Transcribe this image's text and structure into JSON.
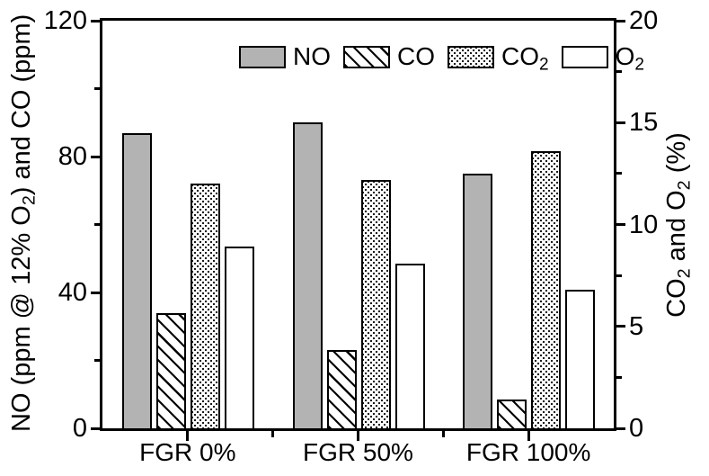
{
  "figure": {
    "background": "#ffffff",
    "line_color": "#000000",
    "bar_gray": "#b3b3b3"
  },
  "chart_data": {
    "type": "bar",
    "categories": [
      "FGR 0%",
      "FGR 50%",
      "FGR 100%"
    ],
    "series": [
      {
        "name": "NO",
        "axis": "left",
        "fill": "solid-gray",
        "label_parts": [
          {
            "t": "NO"
          }
        ],
        "values": [
          87,
          90,
          75
        ]
      },
      {
        "name": "CO",
        "axis": "left",
        "fill": "diagonal-hatch",
        "label_parts": [
          {
            "t": "CO"
          }
        ],
        "values": [
          34,
          23,
          8.5
        ]
      },
      {
        "name": "CO2",
        "axis": "right",
        "fill": "dots",
        "label_parts": [
          {
            "t": "CO"
          },
          {
            "t": "2",
            "sub": true
          }
        ],
        "values": [
          12.0,
          12.2,
          13.6
        ]
      },
      {
        "name": "O2",
        "axis": "right",
        "fill": "white",
        "label_parts": [
          {
            "t": "O"
          },
          {
            "t": "2",
            "sub": true
          }
        ],
        "values": [
          8.9,
          8.1,
          6.8
        ]
      }
    ],
    "left_axis": {
      "label": "NO (ppm @ 12% O2) and CO (ppm)",
      "label_parts": [
        {
          "t": "NO (ppm @ 12% O"
        },
        {
          "t": "2",
          "sub": true
        },
        {
          "t": ") and CO (ppm)"
        }
      ],
      "range": [
        0,
        120
      ],
      "major_ticks": [
        0,
        40,
        80,
        120
      ],
      "minor_ticks": [
        20,
        60,
        100
      ]
    },
    "right_axis": {
      "label": "CO2 and O2 (%)",
      "label_parts": [
        {
          "t": "CO"
        },
        {
          "t": "2",
          "sub": true
        },
        {
          "t": " and O"
        },
        {
          "t": "2",
          "sub": true
        },
        {
          "t": " (%)"
        }
      ],
      "range": [
        0,
        20
      ],
      "major_ticks": [
        0,
        5,
        10,
        15,
        20
      ],
      "minor_ticks": [
        2.5,
        7.5,
        12.5,
        17.5
      ]
    },
    "legend": {
      "position": "top-center",
      "items": [
        "NO",
        "CO",
        "CO2",
        "O2"
      ]
    },
    "grid": false
  }
}
